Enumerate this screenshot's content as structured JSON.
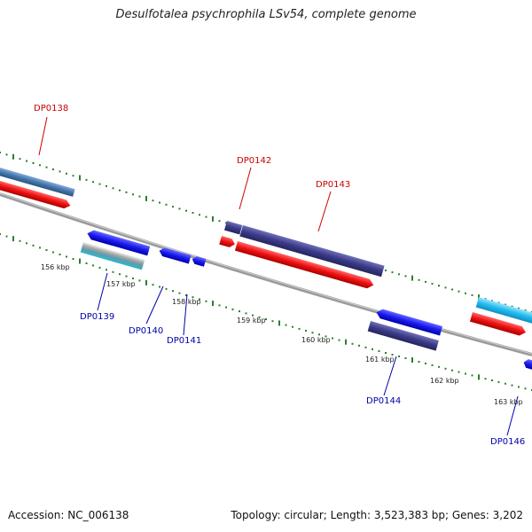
{
  "title": "Desulfotalea psychrophila LSv54, complete genome",
  "footer": {
    "accession": "Accession: NC_006138",
    "summary": "Topology: circular; Length: 3,523,383 bp; Genes: 3,202"
  },
  "colors": {
    "backbone": "#8a8a8a",
    "tick": "#2e7d2e",
    "label_forward": "#cc0000",
    "label_reverse": "#0000aa",
    "red_feature": "#ee1111",
    "blue_feature": "#1a1aee",
    "purple_feature": "#3a3a88",
    "steel_feature": "#4477aa",
    "cyan_feature": "#22aacc",
    "skyblue_feature": "#22bbee",
    "gray_feature": "#aaaaaa"
  },
  "scale_labels": [
    "156 kbp",
    "157 kbp",
    "158 kbp",
    "159 kbp",
    "160 kbp",
    "161 kbp",
    "162 kbp",
    "163 kbp"
  ],
  "gene_labels": [
    {
      "id": "DP0138",
      "strand": "forward"
    },
    {
      "id": "DP0142",
      "strand": "forward"
    },
    {
      "id": "DP0143",
      "strand": "forward"
    },
    {
      "id": "DP0139",
      "strand": "reverse"
    },
    {
      "id": "DP0140",
      "strand": "reverse"
    },
    {
      "id": "DP0141",
      "strand": "reverse"
    },
    {
      "id": "DP0144",
      "strand": "reverse"
    },
    {
      "id": "DP0146",
      "strand": "reverse"
    }
  ]
}
